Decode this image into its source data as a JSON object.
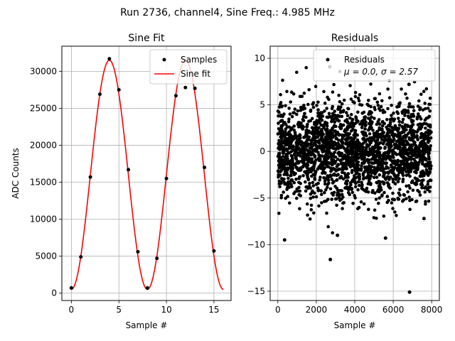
{
  "figure": {
    "suptitle": "Run 2736, channel4, Sine Freq.: 4.985 MHz"
  },
  "chart_data": [
    {
      "type": "line",
      "title": "Sine Fit",
      "xlabel": "Sample #",
      "ylabel": "ADC Counts",
      "xlim": [
        -1.0,
        16.8
      ],
      "ylim": [
        -1000,
        33400
      ],
      "xticks": [
        0,
        5,
        10,
        15
      ],
      "yticks": [
        0,
        5000,
        10000,
        15000,
        20000,
        25000,
        30000
      ],
      "grid": true,
      "legend": {
        "placement": "top-right",
        "entries": [
          "Samples",
          "Sine fit"
        ]
      },
      "series": [
        {
          "name": "Samples",
          "kind": "scatter",
          "color": "#000000",
          "x": [
            0,
            1,
            2,
            3,
            4,
            5,
            6,
            7,
            8,
            9,
            10,
            11,
            12,
            13,
            14,
            15
          ],
          "y": [
            700,
            4900,
            15700,
            26900,
            31700,
            27500,
            16700,
            5600,
            700,
            4700,
            15500,
            26700,
            27800,
            27700,
            17000,
            5700
          ]
        },
        {
          "name": "Sine fit",
          "kind": "line",
          "color": "#ff0000",
          "model": {
            "offset": 16000,
            "amplitude": 15500,
            "period": 8.0,
            "peak_x": 4.0,
            "x_start": 0,
            "x_end": 16
          }
        }
      ]
    },
    {
      "type": "scatter",
      "title": "Residuals",
      "xlabel": "Sample #",
      "ylabel": "",
      "xlim": [
        -400,
        8400
      ],
      "ylim": [
        -16.0,
        11.3
      ],
      "xticks": [
        0,
        2000,
        4000,
        6000,
        8000
      ],
      "yticks": [
        -15,
        -10,
        -5,
        0,
        5,
        10
      ],
      "grid": true,
      "legend": {
        "placement": "top-right",
        "entries": [
          "Residuals",
          "μ = 0.0, σ = 2.57"
        ]
      },
      "series": [
        {
          "name": "Residuals",
          "color": "#000000",
          "mu": 0.0,
          "sigma": 2.57,
          "n_points": 8000,
          "outliers": [
            {
              "x": 2700,
              "y": 9.1
            },
            {
              "x": 2730,
              "y": -11.6
            },
            {
              "x": 350,
              "y": -9.5
            },
            {
              "x": 6850,
              "y": -15.1
            },
            {
              "x": 6820,
              "y": 7.2
            },
            {
              "x": 3100,
              "y": -9.0
            },
            {
              "x": 5600,
              "y": -9.3
            },
            {
              "x": 7600,
              "y": -7.2
            }
          ]
        }
      ]
    }
  ]
}
